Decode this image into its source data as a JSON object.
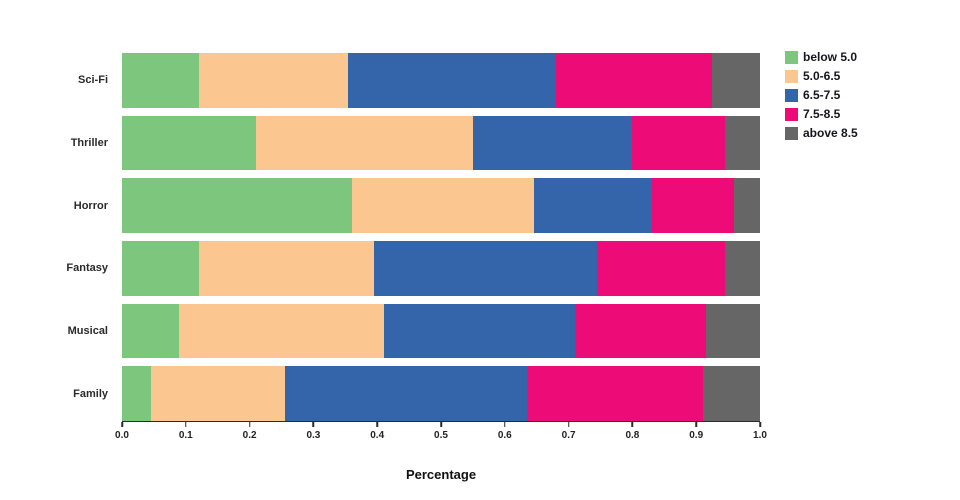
{
  "chart_data": {
    "type": "bar",
    "orientation": "horizontal",
    "stacked": true,
    "title": "",
    "xlabel": "Percentage",
    "ylabel": "",
    "xlim": [
      0,
      1
    ],
    "xticks": [
      0.0,
      0.1,
      0.2,
      0.3,
      0.4,
      0.5,
      0.6,
      0.7,
      0.8,
      0.9,
      1.0
    ],
    "grid": false,
    "legend_position": "top-right",
    "categories": [
      "Sci-Fi",
      "Thriller",
      "Horror",
      "Fantasy",
      "Musical",
      "Family"
    ],
    "series": [
      {
        "name": "below 5.0",
        "color": "#7cc67e",
        "values": [
          0.12,
          0.21,
          0.36,
          0.12,
          0.09,
          0.045
        ]
      },
      {
        "name": "5.0-6.5",
        "color": "#fcc690",
        "values": [
          0.235,
          0.34,
          0.285,
          0.275,
          0.32,
          0.21
        ]
      },
      {
        "name": "6.5-7.5",
        "color": "#3465aa",
        "values": [
          0.325,
          0.25,
          0.185,
          0.35,
          0.3,
          0.38
        ]
      },
      {
        "name": "7.5-8.5",
        "color": "#ec0b77",
        "values": [
          0.245,
          0.145,
          0.13,
          0.2,
          0.205,
          0.275
        ]
      },
      {
        "name": "above 8.5",
        "color": "#666666",
        "values": [
          0.075,
          0.055,
          0.04,
          0.055,
          0.085,
          0.09
        ]
      }
    ]
  }
}
